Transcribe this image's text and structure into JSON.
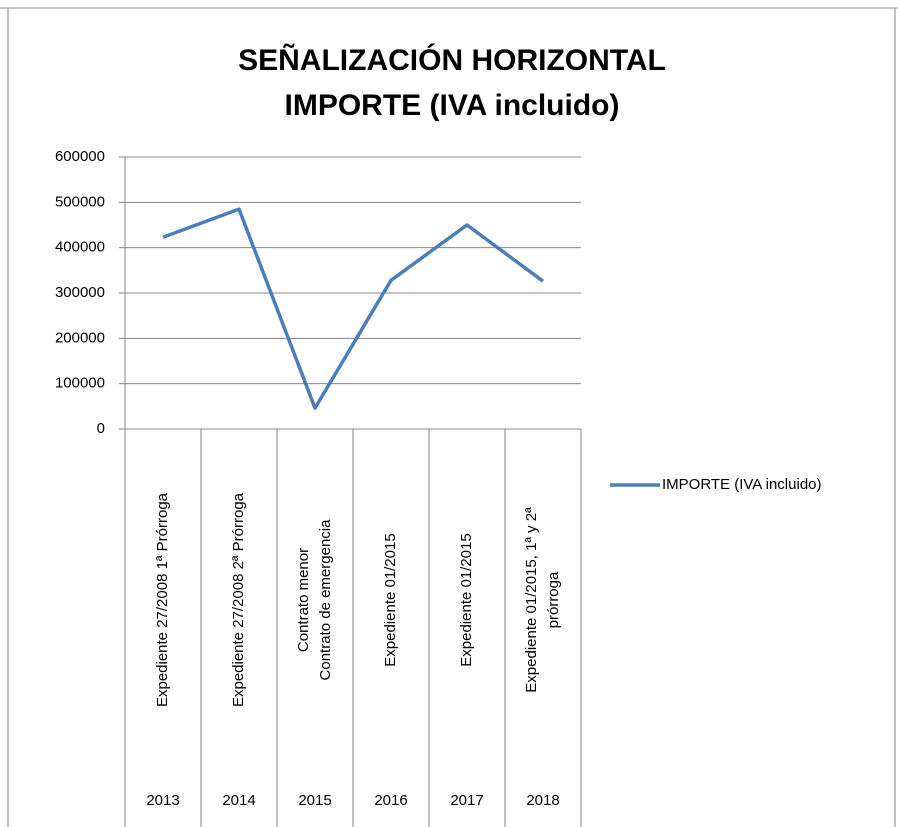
{
  "chart_data": {
    "type": "line",
    "title": [
      "SEÑALIZACIÓN HORIZONTAL",
      "IMPORTE (IVA incluido)"
    ],
    "categories": [
      [
        "Expediente 27/2008 1ª Prórroga"
      ],
      [
        "Expediente 27/2008 2ª Prórroga"
      ],
      [
        "Contrato menor",
        "Contrato de emergencia"
      ],
      [
        "Expediente 01/2015"
      ],
      [
        "Expediente 01/2015"
      ],
      [
        "Expediente 01/2015, 1ª y 2ª",
        "prórroga"
      ]
    ],
    "category_groups": [
      "2013",
      "2014",
      "2015",
      "2016",
      "2017",
      "2018"
    ],
    "series": [
      {
        "name": "IMPORTE (IVA incluido)",
        "color": "#4a7ebb",
        "values": [
          423000,
          485000,
          46000,
          328000,
          450000,
          326000
        ]
      }
    ],
    "ylim": [
      0,
      600000
    ],
    "yticks": [
      0,
      100000,
      200000,
      300000,
      400000,
      500000,
      600000
    ],
    "grid": true,
    "legend": "right"
  }
}
